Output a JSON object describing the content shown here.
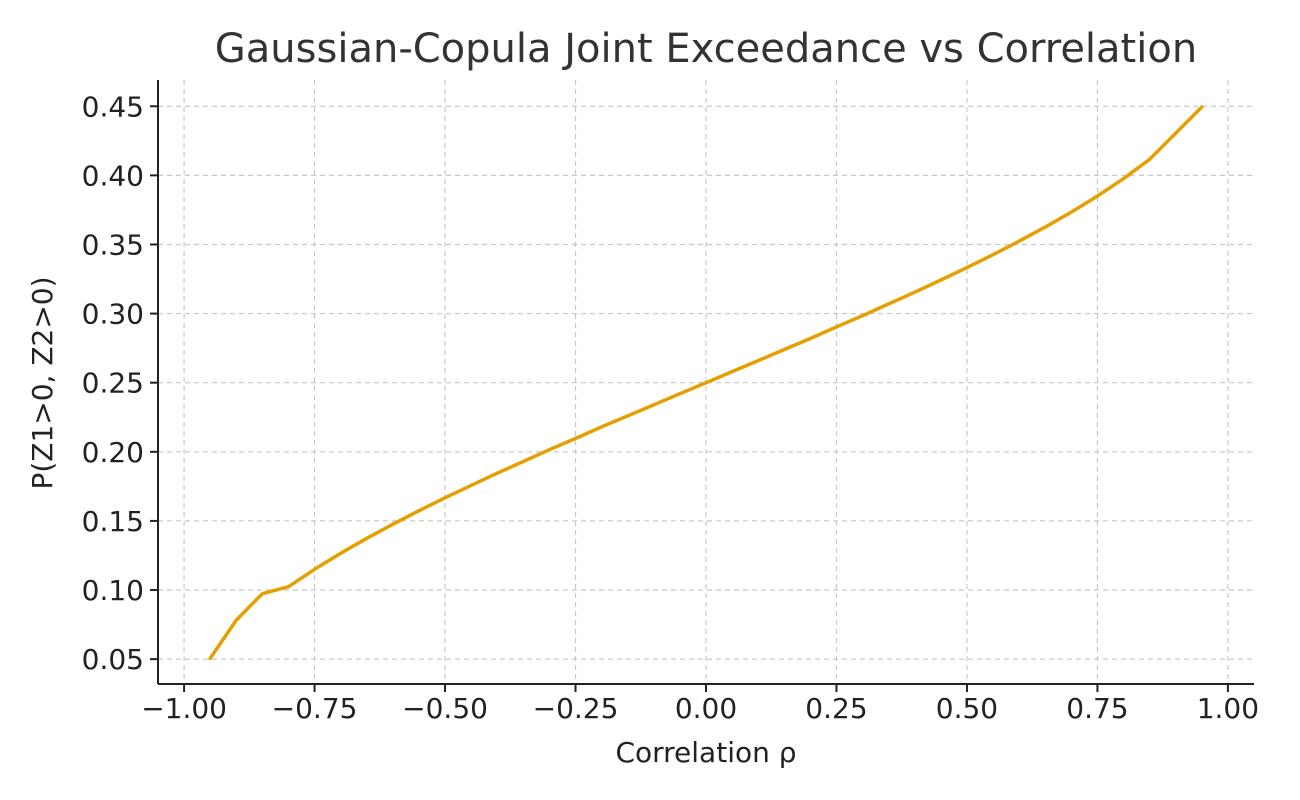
{
  "chart_data": {
    "type": "line",
    "title": "Gaussian-Copula Joint Exceedance vs Correlation",
    "xlabel": "Correlation ρ",
    "ylabel": "P(Z1>0, Z2>0)",
    "xlim": [
      -1.05,
      1.05
    ],
    "ylim": [
      0.032,
      0.469
    ],
    "x_ticks": [
      -1.0,
      -0.75,
      -0.5,
      -0.25,
      0.0,
      0.25,
      0.5,
      0.75,
      1.0
    ],
    "x_tick_labels": [
      "−1.00",
      "−0.75",
      "−0.50",
      "−0.25",
      "0.00",
      "0.25",
      "0.50",
      "0.75",
      "1.00"
    ],
    "y_ticks": [
      0.05,
      0.1,
      0.15,
      0.2,
      0.25,
      0.3,
      0.35,
      0.4,
      0.45
    ],
    "y_tick_labels": [
      "0.05",
      "0.10",
      "0.15",
      "0.20",
      "0.25",
      "0.30",
      "0.35",
      "0.40",
      "0.45"
    ],
    "grid": true,
    "series": [
      {
        "color": "#E69F00",
        "x": [
          -0.95,
          -0.9,
          -0.85,
          -0.8,
          -0.75,
          -0.7,
          -0.65,
          -0.6,
          -0.55,
          -0.5,
          -0.45,
          -0.4,
          -0.35,
          -0.3,
          -0.25,
          -0.2,
          -0.15,
          -0.1,
          -0.05,
          0.0,
          0.05,
          0.1,
          0.15,
          0.2,
          0.25,
          0.3,
          0.35,
          0.4,
          0.45,
          0.5,
          0.55,
          0.6,
          0.65,
          0.7,
          0.75,
          0.8,
          0.85,
          0.95
        ],
        "y": [
          0.0505,
          0.0782,
          0.0973,
          0.1024,
          0.115,
          0.1266,
          0.1374,
          0.1476,
          0.1574,
          0.1667,
          0.1757,
          0.1845,
          0.193,
          0.2015,
          0.2096,
          0.218,
          0.226,
          0.234,
          0.242,
          0.25,
          0.258,
          0.266,
          0.274,
          0.282,
          0.2904,
          0.2985,
          0.307,
          0.3155,
          0.3243,
          0.3333,
          0.3426,
          0.3524,
          0.3626,
          0.3734,
          0.385,
          0.3976,
          0.4116,
          0.4495
        ]
      }
    ]
  }
}
